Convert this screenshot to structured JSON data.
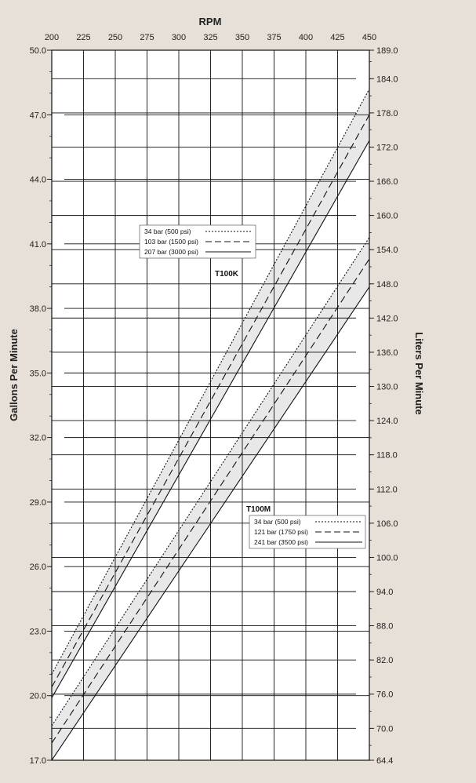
{
  "chart_data": {
    "type": "line",
    "x_axis": {
      "title": "RPM",
      "ticks": [
        200,
        225,
        250,
        275,
        300,
        325,
        350,
        375,
        400,
        425,
        450
      ],
      "range": [
        200,
        450
      ],
      "position": "top"
    },
    "y_left": {
      "title": "Gallons Per Minute",
      "ticks": [
        "50.0",
        "47.0",
        "44.0",
        "41.0",
        "38.0",
        "35.0",
        "32.0",
        "29.0",
        "26.0",
        "23.0",
        "20.0",
        "17.0"
      ],
      "range": [
        17,
        50
      ]
    },
    "y_right": {
      "title": "Liters Per Minute",
      "ticks": [
        "189.0",
        "184.0",
        "178.0",
        "172.0",
        "166.0",
        "160.0",
        "154.0",
        "148.0",
        "142.0",
        "136.0",
        "130.0",
        "124.0",
        "118.0",
        "112.0",
        "106.0",
        "100.0",
        "94.0",
        "88.0",
        "82.0",
        "76.0",
        "70.0",
        "64.4"
      ],
      "range": [
        64.4,
        189
      ]
    },
    "grid": true,
    "groups": [
      {
        "name": "T100K",
        "legend_position": "upper-left",
        "series": [
          {
            "name": "34 bar (500 psi)",
            "style": "dotted",
            "x": [
              200,
              450
            ],
            "y": [
              21.0,
              48.2
            ]
          },
          {
            "name": "103 bar (1500 psi)",
            "style": "dashed",
            "x": [
              200,
              450
            ],
            "y": [
              20.4,
              47.0
            ]
          },
          {
            "name": "207 bar (3000 psi)",
            "style": "solid",
            "x": [
              200,
              450
            ],
            "y": [
              19.9,
              45.8
            ]
          }
        ]
      },
      {
        "name": "T100M",
        "legend_position": "lower-right",
        "series": [
          {
            "name": "34 bar (500 psi)",
            "style": "dotted",
            "x": [
              200,
              450
            ],
            "y": [
              18.6,
              41.3
            ]
          },
          {
            "name": "121 bar (1750 psi)",
            "style": "dashed",
            "x": [
              200,
              450
            ],
            "y": [
              17.8,
              40.3
            ]
          },
          {
            "name": "241 bar (3500 psi)",
            "style": "solid",
            "x": [
              200,
              450
            ],
            "y": [
              17.0,
              39.0
            ]
          }
        ]
      }
    ],
    "colors": {
      "background": "#e6e0d8",
      "plot_area": "#ffffff",
      "band_fill": "#e8e8e8",
      "lines": "#111111"
    }
  }
}
